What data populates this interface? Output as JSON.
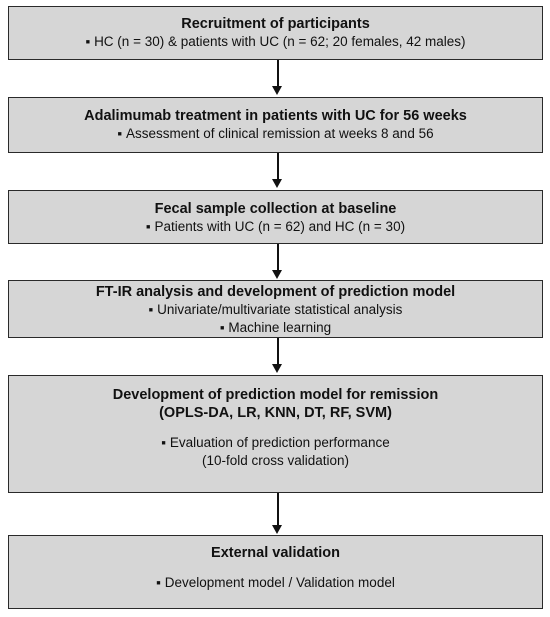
{
  "boxes": [
    {
      "title": "Recruitment of participants",
      "lines": [
        "HC (n = 30) & patients with UC (n = 62; 20 females, 42 males)"
      ]
    },
    {
      "title": "Adalimumab treatment in patients with UC for 56 weeks",
      "lines": [
        "Assessment of clinical remission at weeks 8 and 56"
      ]
    },
    {
      "title": "Fecal sample collection at baseline",
      "lines": [
        "Patients with UC (n = 62) and HC (n = 30)"
      ]
    },
    {
      "title": "FT-IR analysis and development of prediction model",
      "lines": [
        "Univariate/multivariate statistical analysis",
        "Machine learning"
      ]
    },
    {
      "title": "Development of prediction model for remission",
      "subtitle": "(OPLS-DA, LR, KNN, DT, RF, SVM)",
      "lines": [
        "Evaluation of prediction performance"
      ],
      "note": "(10-fold cross validation)"
    },
    {
      "title": "External validation",
      "lines": [
        "Development model / Validation model"
      ]
    }
  ]
}
